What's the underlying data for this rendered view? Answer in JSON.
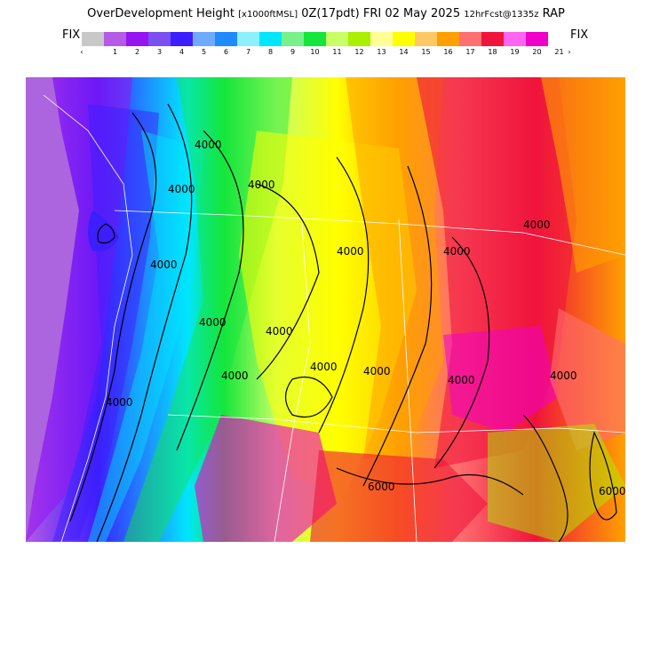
{
  "header": {
    "product": "OverDevelopment Height",
    "units": "[x1000ftMSL]",
    "run": "0Z(17pdt) FRI 02 May 2025",
    "forecast_info": "12hrFcst@1335z",
    "model": "RAP"
  },
  "colorbar": {
    "left_label": "FIX",
    "right_label": "FIX",
    "left_arrow": "‹",
    "right_arrow": "›",
    "colors": [
      "#c8c8c8",
      "#b45ae6",
      "#9614f0",
      "#7a50f0",
      "#3c1eff",
      "#6eaaff",
      "#1e8cff",
      "#8cf0ff",
      "#00e6ff",
      "#78f08c",
      "#14e63c",
      "#c8ff64",
      "#aaf000",
      "#ffff96",
      "#ffff00",
      "#ffc864",
      "#ffa000",
      "#ff7070",
      "#f0143c",
      "#ff64f0",
      "#f000c8"
    ],
    "tick_labels": [
      "1",
      "2",
      "3",
      "4",
      "5",
      "6",
      "7",
      "8",
      "9",
      "10",
      "11",
      "12",
      "13",
      "14",
      "15",
      "16",
      "17",
      "18",
      "19",
      "20",
      "21"
    ]
  },
  "map": {
    "contour_labels": [
      "4000",
      "4000",
      "4000",
      "4000",
      "4000",
      "4000",
      "4000",
      "4000",
      "4000",
      "4000",
      "4000",
      "4000",
      "4000",
      "4000",
      "4000",
      "6000",
      "6000"
    ]
  }
}
